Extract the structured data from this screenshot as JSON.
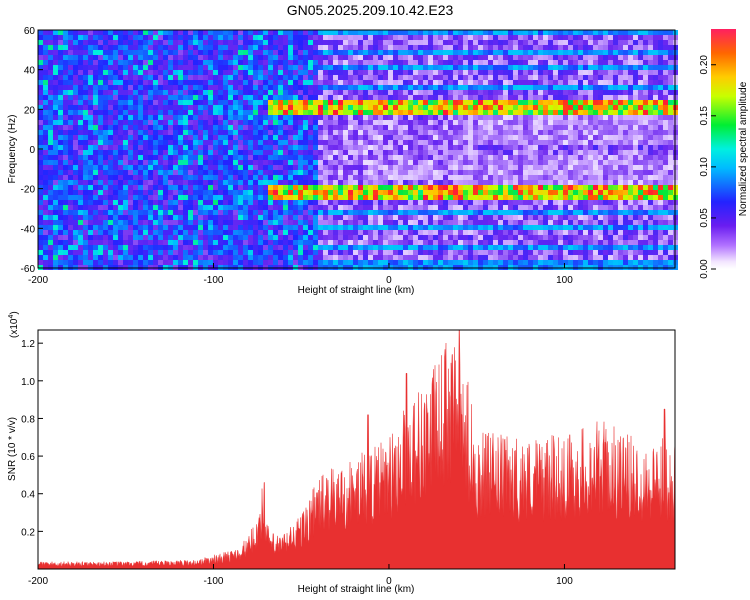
{
  "title": "GN05.2025.209.10.42.E23",
  "colors": {
    "snr_fill": "#e83030",
    "spectrogram_bg": "#ffffff"
  },
  "chart_data": [
    {
      "type": "heatmap",
      "title": "GN05.2025.209.10.42.E23",
      "xlabel": "Height of straight line (km)",
      "ylabel": "Frequency (Hz)",
      "xlim": [
        -200,
        163
      ],
      "ylim": [
        -60,
        60
      ],
      "xticks": [
        "-200",
        "-100",
        "0",
        "100"
      ],
      "yticks": [
        "-60",
        "-40",
        "-20",
        "0",
        "20",
        "40",
        "60"
      ],
      "colorbar": {
        "label": "Normalized spectral amplitude",
        "range": [
          0.0,
          0.235
        ],
        "ticks": [
          "0.00",
          "0.05",
          "0.10",
          "0.15",
          "0.20"
        ],
        "colormap": "rainbow (purple→blue→cyan→green→yellow→orange→red)",
        "placement": "right"
      },
      "features": [
        {
          "name": "noise",
          "x_range": [
            -200,
            -40
          ],
          "freq_range": [
            -60,
            60
          ],
          "amplitude": 0.05
        },
        {
          "name": "upper line",
          "x_range": [
            -70,
            163
          ],
          "freq": 20,
          "amplitude": 0.2
        },
        {
          "name": "lower line",
          "x_range": [
            -70,
            163
          ],
          "freq": -21,
          "amplitude": 0.22
        }
      ],
      "grid": false
    },
    {
      "type": "area",
      "xlabel": "Height of straight line (km)",
      "ylabel": "SNR (10 * v/v)",
      "y_multiplier_label": "(x10",
      "y_multiplier_exp": "4",
      "y_multiplier_close": ")",
      "xlim": [
        -200,
        163
      ],
      "ylim": [
        0,
        1.27
      ],
      "xticks": [
        "-200",
        "-100",
        "0",
        "100"
      ],
      "yticks": [
        "0.2",
        "0.4",
        "0.6",
        "0.8",
        "1.0",
        "1.2"
      ],
      "envelope": {
        "x": [
          -200,
          -150,
          -110,
          -90,
          -80,
          -75,
          -72,
          -70,
          -65,
          -60,
          -55,
          -50,
          -40,
          -30,
          -20,
          -10,
          0,
          10,
          20,
          30,
          35,
          40,
          45,
          50,
          60,
          80,
          100,
          120,
          140,
          163
        ],
        "y": [
          0.04,
          0.04,
          0.05,
          0.1,
          0.17,
          0.3,
          0.46,
          0.25,
          0.18,
          0.19,
          0.25,
          0.3,
          0.5,
          0.55,
          0.6,
          0.65,
          0.7,
          0.9,
          1.0,
          1.15,
          1.27,
          1.1,
          1.0,
          0.75,
          0.72,
          0.7,
          0.72,
          0.8,
          0.7,
          0.7
        ]
      },
      "peaks": [
        {
          "x": -71,
          "y": 0.46
        },
        {
          "x": -12,
          "y": 0.82
        },
        {
          "x": 10,
          "y": 1.04
        },
        {
          "x": 36,
          "y": 1.14
        },
        {
          "x": 40,
          "y": 1.27
        },
        {
          "x": 157,
          "y": 0.85
        }
      ],
      "grid": false
    }
  ]
}
